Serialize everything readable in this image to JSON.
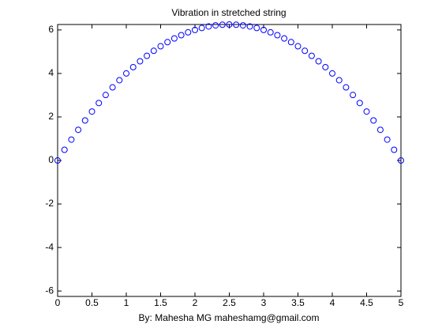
{
  "chart_data": {
    "type": "scatter",
    "title": "Vibration in stretched string",
    "xlabel": "By: Mahesha MG maheshamg@gmail.com",
    "color": "#0000ff",
    "x": [
      0,
      0.1,
      0.2,
      0.3,
      0.4,
      0.5,
      0.6,
      0.7,
      0.8,
      0.9,
      1,
      1.1,
      1.2,
      1.3,
      1.4,
      1.5,
      1.6,
      1.7,
      1.8,
      1.9,
      2,
      2.1,
      2.2,
      2.3,
      2.4,
      2.5,
      2.6,
      2.7,
      2.8,
      2.9,
      3,
      3.1,
      3.2,
      3.3,
      3.4,
      3.5,
      3.6,
      3.7,
      3.8,
      3.9,
      4,
      4.1,
      4.2,
      4.3,
      4.4,
      4.5,
      4.6,
      4.7,
      4.8,
      4.9,
      5
    ],
    "values": [
      0,
      0.49,
      0.96,
      1.41,
      1.84,
      2.25,
      2.64,
      3.01,
      3.36,
      3.69,
      4,
      4.29,
      4.56,
      4.81,
      5.04,
      5.25,
      5.44,
      5.61,
      5.76,
      5.89,
      6,
      6.09,
      6.16,
      6.21,
      6.24,
      6.25,
      6.24,
      6.21,
      6.16,
      6.09,
      6,
      5.89,
      5.76,
      5.61,
      5.44,
      5.25,
      5.04,
      4.81,
      4.56,
      4.29,
      4,
      3.69,
      3.36,
      3.01,
      2.64,
      2.25,
      1.84,
      1.41,
      0.96,
      0.49,
      0
    ],
    "xlim": [
      0,
      5
    ],
    "xticks": [
      0,
      0.5,
      1,
      1.5,
      2,
      2.5,
      3,
      3.5,
      4,
      4.5,
      5
    ],
    "ylim": [
      -6.25,
      6.25
    ],
    "yticks": [
      -6,
      -4,
      -2,
      0,
      2,
      4,
      6
    ],
    "grid": false
  }
}
